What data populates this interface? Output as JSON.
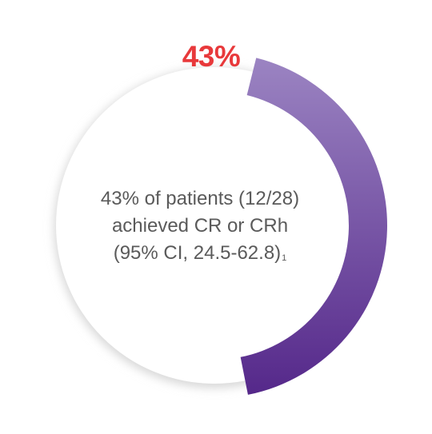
{
  "chart_data": {
    "type": "pie",
    "subtype": "donut-progress",
    "value_percent": 43,
    "value_label": "43%",
    "caption_lines": [
      "43% of patients (12/28)",
      "achieved CR or CRh",
      "(95% CI, 24.5-62.8)"
    ],
    "footnote_marker": "1"
  },
  "colors": {
    "value_label": "#e8393b",
    "arc_start": "#9b84c2",
    "arc_end": "#55288a",
    "caption_text": "#5a5a5a",
    "center_fill": "#ffffff",
    "shadow": "#d6d6d6"
  }
}
